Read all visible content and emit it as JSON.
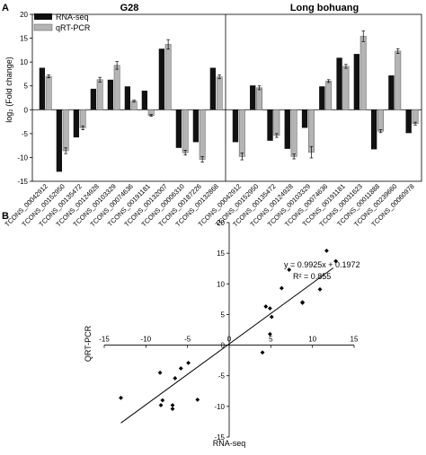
{
  "chart_data": [
    {
      "panel_label": "A",
      "type": "bar",
      "ylabel": "log₂ (Fold change)",
      "ylim": [
        -15,
        20
      ],
      "yticks": [
        -15,
        -10,
        -5,
        0,
        5,
        10,
        15,
        20
      ],
      "legend": {
        "placement": "top-left",
        "entries": [
          "RNA-seq",
          "qRT-PCR"
        ]
      },
      "series_colors": {
        "RNA-seq": "#111111",
        "qRT-PCR": "#b4b4b4"
      },
      "groups": [
        {
          "title": "G28",
          "categories": [
            "TCONS_00042912",
            "TCONS_00152950",
            "TCONS_00135472",
            "TCONS_00124928",
            "TCONS_00103329",
            "TCONS_00074636",
            "TCONS_00191181",
            "TCONS_00132007",
            "TCONS_00006310",
            "TCONS_00187226",
            "TCONS_00132868"
          ],
          "series": [
            {
              "name": "RNA-seq",
              "values": [
                8.8,
                -13.0,
                -5.8,
                4.4,
                6.3,
                4.9,
                4.0,
                12.8,
                -8.0,
                -6.8,
                8.8
              ]
            },
            {
              "name": "qRT-PCR",
              "values": [
                7.0,
                -8.6,
                -3.8,
                6.3,
                9.3,
                1.8,
                -1.2,
                13.7,
                -9.0,
                -10.4,
                6.9
              ],
              "errors": [
                0.3,
                0.6,
                0.4,
                0.5,
                0.8,
                0.2,
                0.2,
                1.0,
                0.5,
                0.6,
                0.4
              ]
            }
          ]
        },
        {
          "title": "Long bohuang",
          "categories": [
            "TCONS_00042912",
            "TCONS_00152950",
            "TCONS_00135472",
            "TCONS_00124928",
            "TCONS_00103329",
            "TCONS_00074636",
            "TCONS_00191181",
            "TCONS_00031623",
            "TCONS_00011888",
            "TCONS_00239660",
            "TCONS_00060978"
          ],
          "series": [
            {
              "name": "RNA-seq",
              "values": [
                -6.8,
                5.1,
                -6.5,
                -8.2,
                -3.8,
                4.9,
                10.9,
                11.7,
                -8.3,
                7.2,
                -4.9
              ]
            },
            {
              "name": "qRT-PCR",
              "values": [
                -9.8,
                4.6,
                -5.4,
                -9.8,
                -8.9,
                6.0,
                9.1,
                15.4,
                -4.5,
                12.3,
                -2.9
              ],
              "errors": [
                0.7,
                0.4,
                0.4,
                0.5,
                1.2,
                0.3,
                0.4,
                1.1,
                0.3,
                0.5,
                0.3
              ]
            }
          ]
        }
      ]
    },
    {
      "panel_label": "B",
      "type": "scatter",
      "xlabel": "RNA-seq",
      "ylabel": "QRT-PCR",
      "xlim": [
        -15,
        15
      ],
      "ylim": [
        -15,
        20
      ],
      "xticks": [
        -15,
        -10,
        -5,
        0,
        5,
        10,
        15
      ],
      "yticks": [
        -15,
        -10,
        -5,
        0,
        5,
        10,
        15,
        20
      ],
      "grid": false,
      "equation": "y = 0.9925x + 0.1972",
      "r2": "R² = 0.855",
      "trendline": {
        "slope": 0.9925,
        "intercept": 0.1972,
        "x_range": [
          -13.0,
          12.5
        ]
      },
      "points": [
        [
          8.8,
          7.0
        ],
        [
          -13.0,
          -8.6
        ],
        [
          -5.8,
          -3.8
        ],
        [
          4.4,
          6.3
        ],
        [
          6.3,
          9.3
        ],
        [
          4.9,
          1.8
        ],
        [
          4.0,
          -1.2
        ],
        [
          12.8,
          13.7
        ],
        [
          -8.0,
          -9.0
        ],
        [
          -6.8,
          -10.4
        ],
        [
          -6.8,
          -9.8
        ],
        [
          5.1,
          4.6
        ],
        [
          -6.5,
          -5.4
        ],
        [
          -8.2,
          -9.8
        ],
        [
          -3.8,
          -8.9
        ],
        [
          4.9,
          6.0
        ],
        [
          10.9,
          9.1
        ],
        [
          11.7,
          15.4
        ],
        [
          -8.3,
          -4.5
        ],
        [
          7.2,
          12.3
        ],
        [
          -4.9,
          -2.9
        ],
        [
          8.8,
          6.9
        ]
      ]
    }
  ]
}
